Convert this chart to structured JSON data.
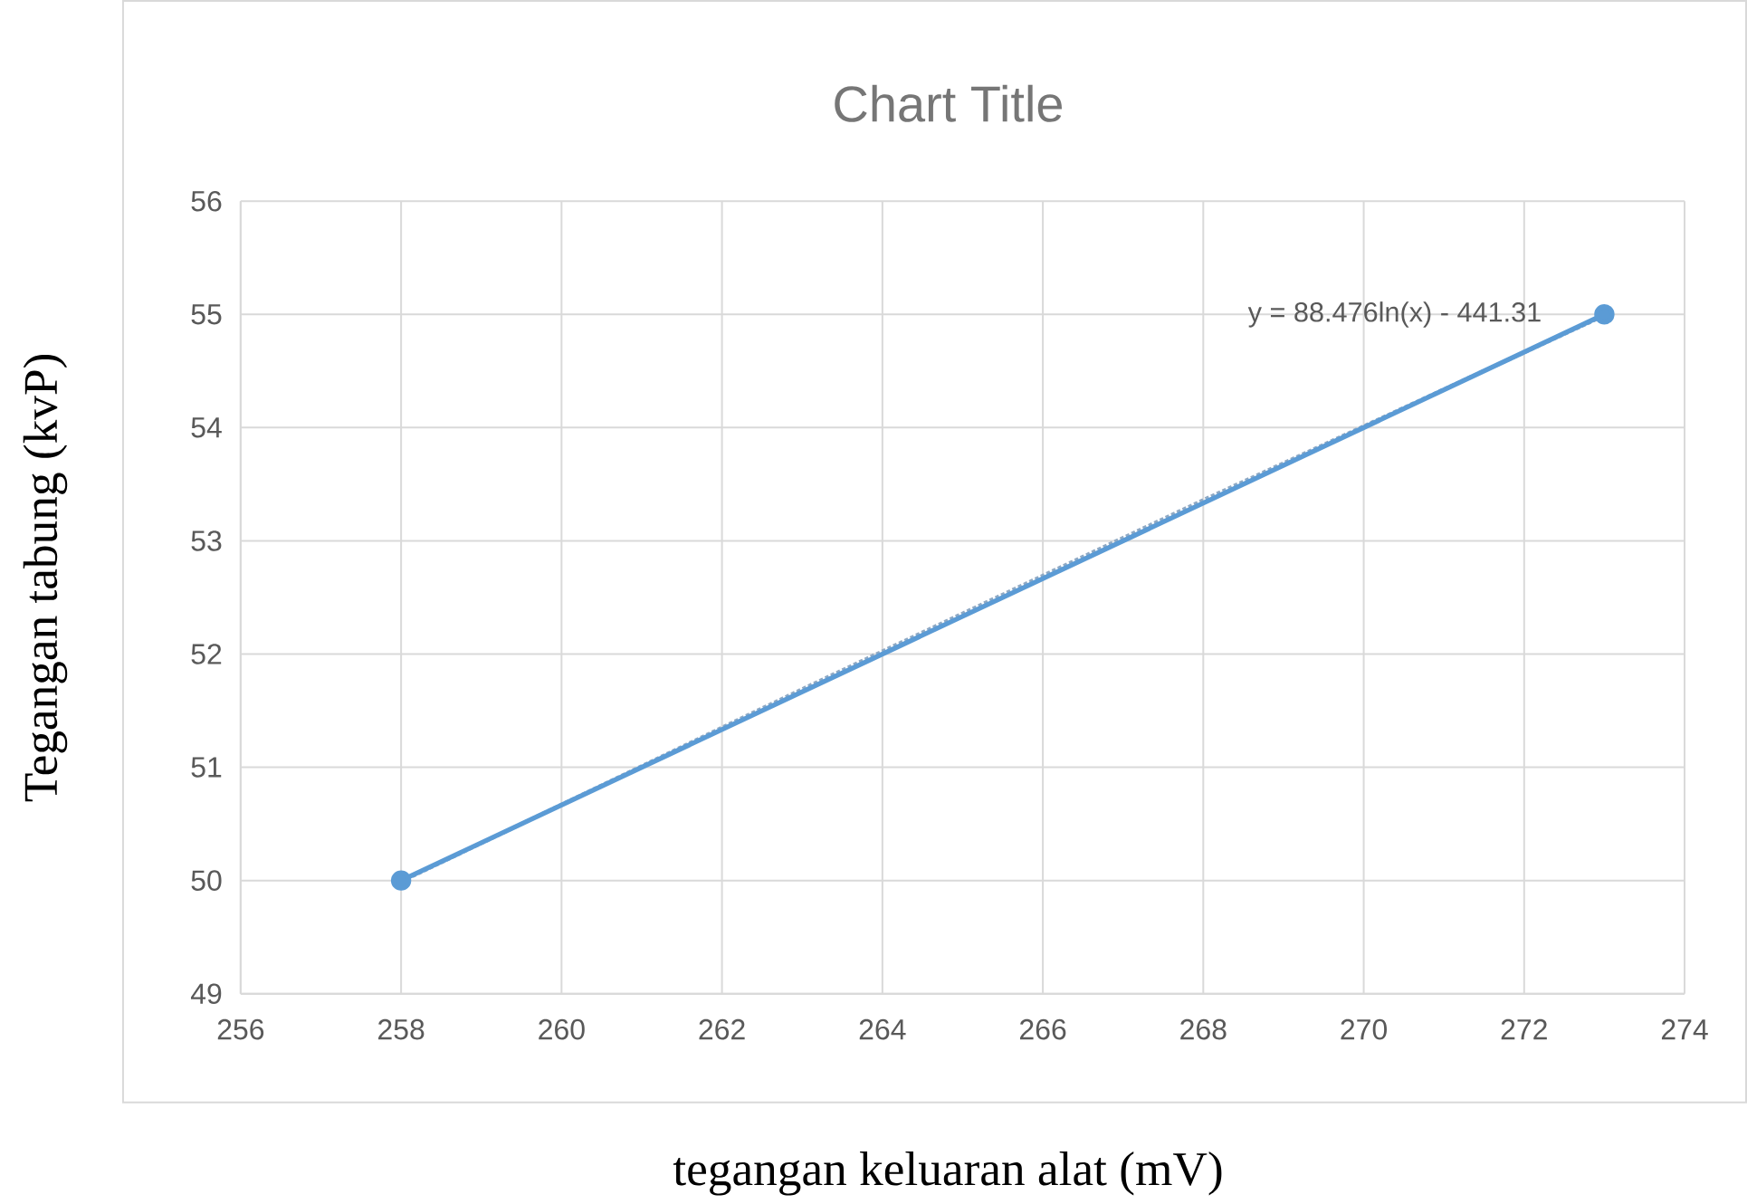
{
  "chart_data": {
    "type": "line",
    "title": "Chart Title",
    "xlabel": "tegangan keluaran alat (mV)",
    "ylabel": "Tegangan tabung (kvP)",
    "series": [
      {
        "color": "#5b9bd5",
        "marker": "circle",
        "line_style": "solid",
        "x": [
          258,
          273
        ],
        "values": [
          50,
          55
        ]
      },
      {
        "color": "#8fa9c4",
        "marker": "none",
        "line_style": "dotted",
        "x": [
          258,
          263,
          268,
          273
        ],
        "values": [
          49.99,
          51.69,
          53.36,
          54.99
        ]
      }
    ],
    "annotations": [
      "y = 88.476ln(x) - 441.31"
    ],
    "xlim": [
      256,
      274
    ],
    "xticks": [
      256,
      258,
      260,
      262,
      264,
      266,
      268,
      270,
      272,
      274
    ],
    "ylim": [
      49,
      56
    ],
    "yticks": [
      49,
      50,
      51,
      52,
      53,
      54,
      55,
      56
    ],
    "grid": true
  }
}
